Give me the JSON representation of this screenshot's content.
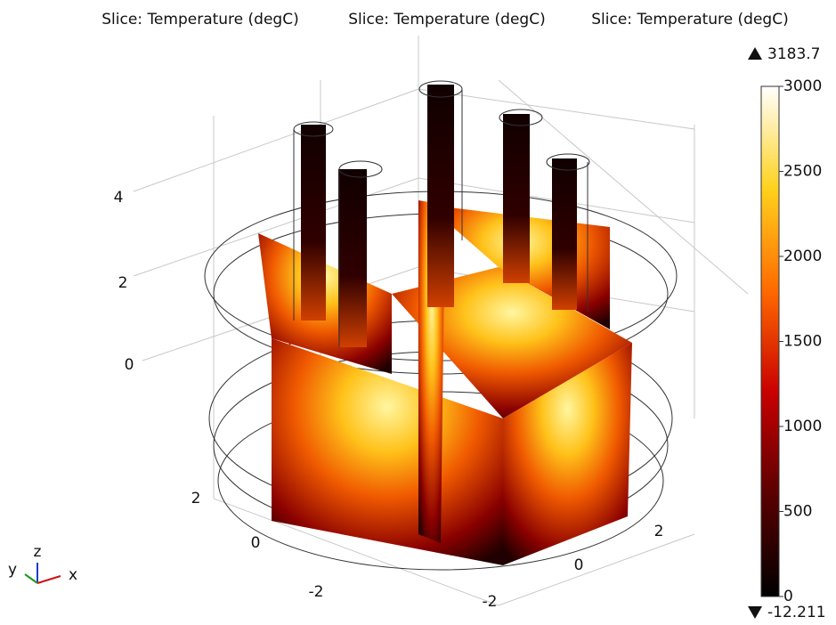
{
  "titles": [
    "Slice: Temperature (degC)",
    "Slice: Temperature (degC)",
    "Slice: Temperature (degC)"
  ],
  "colorbar": {
    "max": 3183.7,
    "min": -12.211,
    "range": [
      0,
      3000
    ],
    "ticks": [
      0,
      500,
      1000,
      1500,
      2000,
      2500,
      3000
    ]
  },
  "axes": {
    "z": {
      "ticks": [
        4,
        2,
        0
      ]
    },
    "y": {
      "ticks": [
        2,
        0,
        -2
      ]
    },
    "x": {
      "ticks": [
        -2,
        0,
        2
      ]
    }
  },
  "triad": {
    "z": "z",
    "y": "y",
    "x": "x"
  }
}
